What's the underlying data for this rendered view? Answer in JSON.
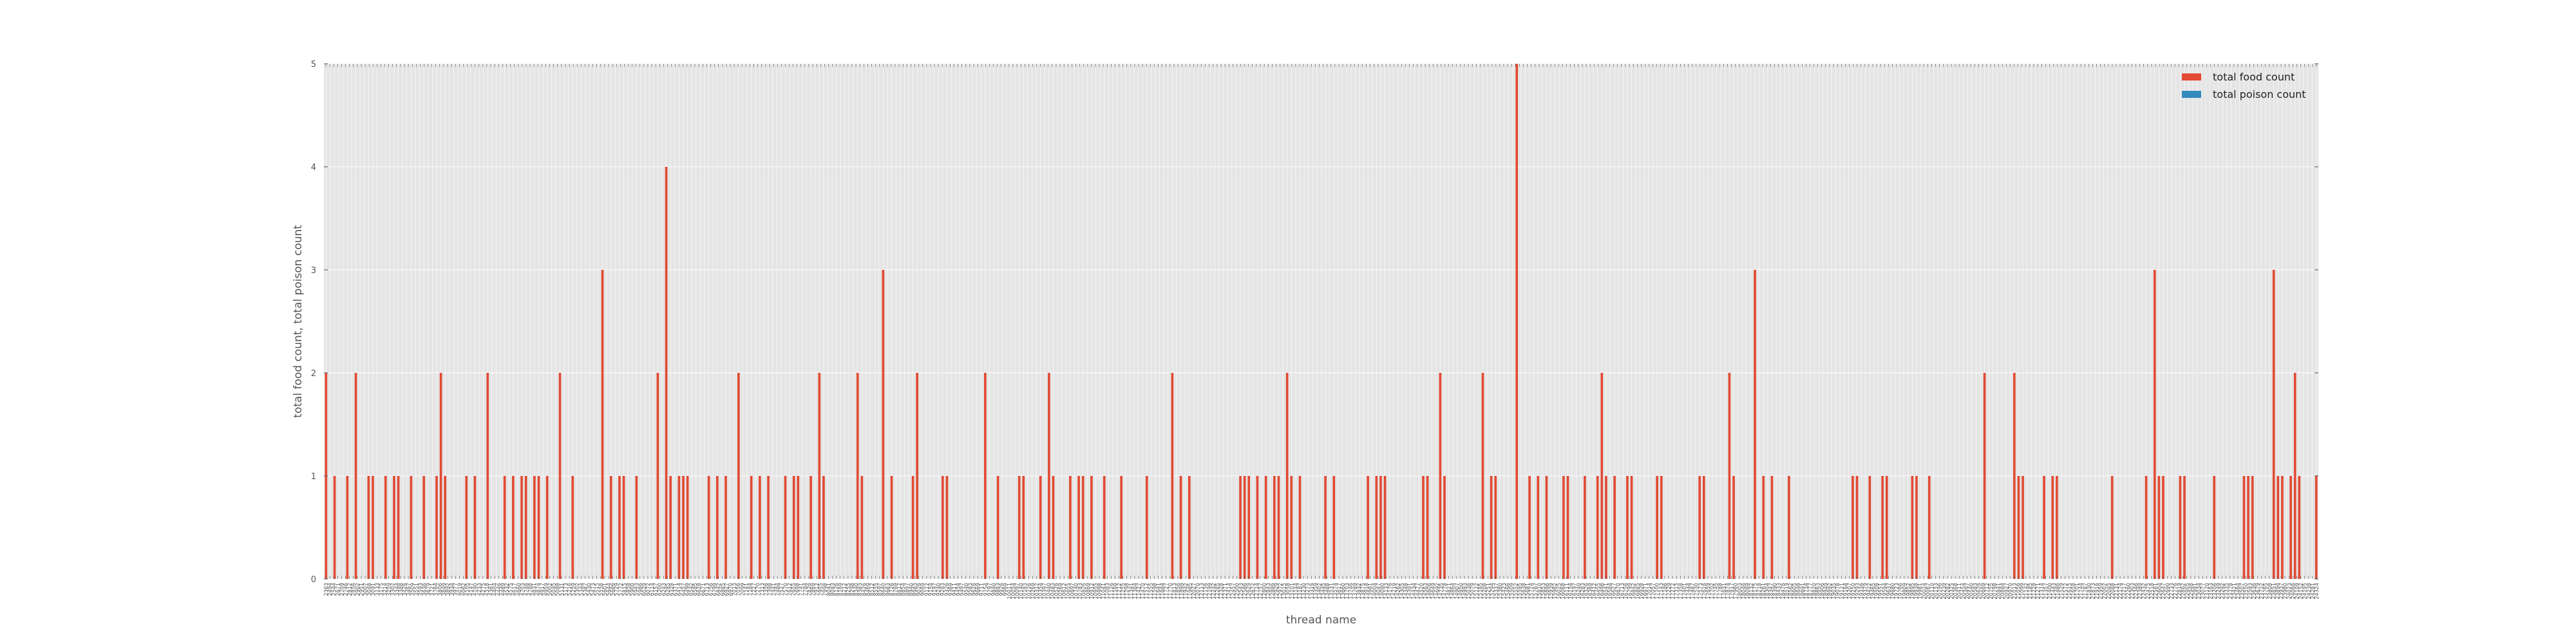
{
  "chart_data": {
    "type": "bar",
    "title": "",
    "xlabel": "thread name",
    "ylabel": "total food count, total poison count",
    "ylim": [
      0,
      5
    ],
    "yticks": [
      "0",
      "1",
      "2",
      "3",
      "4",
      "5"
    ],
    "grid": true,
    "legend_position": "top-right",
    "series": [
      {
        "name": "total food count",
        "color": "#e24a33",
        "values": [
          2,
          0,
          1,
          0,
          0,
          1,
          0,
          2,
          0,
          0,
          1,
          1,
          0,
          0,
          1,
          0,
          1,
          1,
          0,
          0,
          1,
          0,
          0,
          1,
          0,
          0,
          1,
          2,
          1,
          0,
          0,
          0,
          0,
          1,
          0,
          1,
          0,
          0,
          2,
          0,
          0,
          0,
          1,
          0,
          1,
          0,
          1,
          1,
          0,
          1,
          1,
          0,
          1,
          0,
          0,
          2,
          0,
          0,
          1,
          0,
          0,
          0,
          0,
          0,
          0,
          3,
          0,
          1,
          0,
          1,
          1,
          0,
          0,
          1,
          0,
          0,
          0,
          0,
          2,
          0,
          4,
          1,
          0,
          1,
          1,
          1,
          0,
          0,
          0,
          0,
          1,
          0,
          1,
          0,
          1,
          0,
          0,
          2,
          0,
          0,
          1,
          0,
          1,
          0,
          1,
          0,
          0,
          0,
          1,
          0,
          1,
          1,
          0,
          0,
          1,
          0,
          2,
          1,
          0,
          0,
          0,
          0,
          0,
          0,
          0,
          2,
          1,
          0,
          0,
          0,
          0,
          3,
          0,
          1,
          0,
          0,
          0,
          0,
          1,
          2,
          0,
          0,
          0,
          0,
          0,
          1,
          1,
          0,
          0,
          0,
          0,
          0,
          0,
          0,
          0,
          2,
          0,
          0,
          1,
          0,
          0,
          0,
          0,
          1,
          1,
          0,
          0,
          0,
          1,
          0,
          2,
          1,
          0,
          0,
          0,
          1,
          0,
          1,
          1,
          0,
          1,
          0,
          0,
          1,
          0,
          0,
          0,
          1,
          0,
          0,
          0,
          0,
          0,
          1,
          0,
          0,
          0,
          0,
          0,
          2,
          0,
          1,
          0,
          1,
          0,
          0,
          0,
          0,
          0,
          0,
          0,
          0,
          0,
          0,
          0,
          1,
          1,
          1,
          0,
          1,
          0,
          1,
          0,
          1,
          1,
          0,
          2,
          1,
          0,
          1,
          0,
          0,
          0,
          0,
          0,
          1,
          0,
          1,
          0,
          0,
          0,
          0,
          0,
          0,
          0,
          1,
          0,
          1,
          1,
          1,
          0,
          0,
          0,
          0,
          0,
          0,
          0,
          0,
          1,
          1,
          0,
          0,
          2,
          1,
          0,
          0,
          0,
          0,
          0,
          0,
          0,
          0,
          2,
          0,
          1,
          1,
          0,
          0,
          0,
          0,
          5,
          0,
          0,
          1,
          0,
          1,
          0,
          1,
          0,
          0,
          0,
          1,
          1,
          0,
          0,
          0,
          1,
          0,
          0,
          1,
          2,
          1,
          0,
          1,
          0,
          0,
          1,
          1,
          0,
          0,
          0,
          0,
          0,
          1,
          1,
          0,
          0,
          0,
          0,
          0,
          0,
          0,
          0,
          1,
          1,
          0,
          0,
          0,
          0,
          0,
          2,
          1,
          0,
          0,
          0,
          0,
          3,
          0,
          1,
          0,
          1,
          0,
          0,
          0,
          1,
          0,
          0,
          0,
          0,
          0,
          0,
          0,
          0,
          0,
          0,
          0,
          0,
          0,
          0,
          1,
          1,
          0,
          0,
          1,
          0,
          0,
          1,
          1,
          0,
          0,
          0,
          0,
          0,
          1,
          1,
          0,
          0,
          1,
          0,
          0,
          0,
          0,
          0,
          0,
          0,
          0,
          0,
          0,
          0,
          0,
          2,
          0,
          0,
          0,
          0,
          0,
          0,
          2,
          1,
          1,
          0,
          0,
          0,
          0,
          1,
          0,
          1,
          1,
          0,
          0,
          0,
          0,
          0,
          0,
          0,
          0,
          0,
          0,
          0,
          0,
          1,
          0,
          0,
          0,
          0,
          0,
          0,
          0,
          1,
          0,
          3,
          1,
          1,
          0,
          0,
          0,
          1,
          1,
          0,
          0,
          0,
          0,
          0,
          0,
          1,
          0,
          0,
          0,
          0,
          0,
          0,
          1,
          1,
          1,
          0,
          0,
          0,
          0,
          3,
          1,
          1,
          0,
          1,
          2,
          1,
          0,
          0,
          0,
          1
        ]
      },
      {
        "name": "total poison count",
        "color": "#348abd",
        "values": []
      }
    ]
  },
  "x_tick_labels": [
    "2363",
    "2494",
    "2544",
    "2671",
    "2709",
    "2746",
    "2812",
    "2856",
    "2902",
    "2951",
    "3007",
    "3048",
    "3091",
    "3133",
    "3175",
    "3214",
    "3259",
    "3302",
    "3344",
    "3388",
    "3426",
    "3467",
    "3509",
    "3551",
    "3593",
    "3636",
    "3679",
    "3721",
    "3764",
    "3806",
    "3849",
    "3892",
    "3934",
    "3977",
    "4019",
    "4062",
    "4105",
    "4147",
    "4190",
    "4233",
    "4275",
    "4318",
    "4361",
    "4404",
    "4446",
    "4489",
    "4532",
    "4575",
    "4617",
    "4660",
    "4703",
    "4746",
    "4788",
    "4831",
    "4874",
    "4917",
    "4959",
    "5002",
    "5045",
    "5088",
    "5131",
    "5173",
    "5216",
    "5259",
    "5302",
    "5344",
    "5387",
    "5430",
    "5473",
    "5515",
    "5558",
    "5601",
    "5644",
    "5686",
    "5729",
    "5772",
    "5815",
    "5858",
    "5900",
    "5943",
    "5986",
    "6029",
    "6072",
    "6114",
    "6157",
    "6200",
    "6243",
    "6285",
    "6328",
    "6371",
    "6414",
    "6457",
    "6499",
    "6542",
    "6585",
    "6628",
    "6671",
    "6713",
    "6756",
    "6799",
    "6842",
    "6885",
    "6927",
    "6970",
    "7013",
    "7056",
    "7099",
    "7141",
    "7184",
    "7227",
    "7270",
    "7313",
    "7356",
    "7398",
    "7441",
    "7484",
    "7527",
    "7570",
    "7612",
    "7655",
    "7698",
    "7741",
    "7784",
    "7826",
    "7869",
    "7912",
    "7955",
    "7998",
    "8041",
    "8083",
    "8126",
    "8169",
    "8212",
    "8255",
    "8298",
    "8340",
    "8383",
    "8426",
    "8469",
    "8512",
    "8555",
    "8597",
    "8640",
    "8683",
    "8726",
    "8769",
    "8812",
    "8854",
    "8897",
    "8940",
    "8983",
    "9026",
    "9069",
    "9112",
    "9154",
    "9197",
    "9240",
    "9283",
    "9326",
    "9369",
    "9411",
    "9454",
    "9497",
    "9540",
    "9583",
    "9626",
    "9669",
    "9711",
    "9754",
    "9797",
    "9840",
    "9883",
    "9926",
    "9969",
    "10011",
    "10054",
    "10097",
    "10140",
    "10183",
    "10226",
    "10269",
    "10312",
    "10354",
    "10397",
    "10440",
    "10483",
    "10526",
    "10569",
    "10612",
    "10655",
    "10697",
    "10740",
    "10783",
    "10826",
    "10869",
    "10912",
    "10955",
    "10998",
    "11041",
    "11083",
    "11126",
    "11169",
    "11212",
    "11255",
    "11298",
    "11341",
    "11384",
    "11427",
    "11470",
    "11512",
    "11555",
    "11598",
    "11641",
    "11684",
    "11727",
    "11770",
    "11813",
    "11856",
    "11899",
    "11942",
    "11985",
    "12027",
    "12070",
    "12113",
    "12156",
    "12199",
    "12242",
    "12285",
    "12328",
    "12371",
    "12414",
    "12457",
    "12500",
    "12543",
    "12586",
    "12629",
    "12672",
    "12714",
    "12757",
    "12800",
    "12843",
    "12886",
    "12929",
    "12972",
    "13015",
    "13058",
    "13101",
    "13144",
    "13187",
    "13230",
    "13273",
    "13316",
    "13359",
    "13402",
    "13445",
    "13488",
    "13531",
    "13574",
    "13617",
    "13660",
    "13703",
    "13746",
    "13789",
    "13832",
    "13875",
    "13918",
    "13961",
    "14004",
    "14047",
    "14090",
    "14133",
    "14176",
    "14219",
    "14262",
    "14305",
    "14348",
    "14391",
    "14434",
    "14477",
    "14520",
    "14563",
    "14606",
    "14649",
    "14692",
    "14735",
    "14778",
    "14821",
    "14864",
    "14907",
    "14950",
    "14993",
    "15036",
    "15079",
    "15122",
    "15165",
    "15208",
    "15251",
    "15294",
    "15337",
    "15380",
    "15423",
    "15466",
    "15509",
    "15552",
    "15595",
    "15638",
    "15681",
    "15724",
    "15767",
    "15810",
    "15853",
    "15896",
    "15939",
    "15982",
    "16025",
    "16068",
    "16111",
    "16154",
    "16197",
    "16240",
    "16283",
    "16326",
    "16369",
    "16412",
    "16455",
    "16498",
    "16541",
    "16584",
    "16627",
    "16670",
    "16713",
    "16756",
    "16799",
    "16842",
    "16885",
    "16928",
    "16971",
    "17014",
    "17057",
    "17100",
    "17143",
    "17186",
    "17229",
    "17272",
    "17315",
    "17358",
    "17401",
    "17444",
    "17487",
    "17530",
    "17573",
    "17616",
    "17659",
    "17702",
    "17745",
    "17788",
    "17831",
    "17874",
    "17917",
    "17960",
    "18003",
    "18046",
    "18089",
    "18132",
    "18175",
    "18218",
    "18261",
    "18304",
    "18347",
    "18390",
    "18433",
    "18476",
    "18519",
    "18562",
    "18605",
    "18648",
    "18691",
    "18734",
    "18777",
    "18820",
    "18863",
    "18906",
    "18949",
    "18992",
    "19035",
    "19078",
    "19121",
    "19164",
    "19207",
    "19250",
    "19293",
    "19336",
    "19379",
    "19422",
    "19465",
    "19508",
    "19551",
    "19594",
    "19637",
    "19680",
    "19723",
    "19766",
    "19809",
    "19852",
    "19895",
    "19938",
    "19981",
    "20024",
    "20067",
    "20110",
    "20153",
    "20196",
    "20239",
    "20282",
    "20325",
    "20368",
    "20411",
    "20454",
    "20497",
    "20540",
    "20583",
    "20626",
    "20669",
    "20712",
    "20755",
    "20798",
    "20841",
    "20884",
    "20927",
    "20970",
    "21013",
    "21056",
    "21099",
    "21142",
    "21185",
    "21228",
    "21271",
    "21314",
    "21357",
    "21400",
    "21443",
    "21486",
    "21529",
    "21572",
    "21615",
    "21658",
    "21701",
    "21744",
    "21787",
    "21830",
    "21873",
    "21916",
    "21959",
    "22002",
    "22045",
    "22088",
    "22131",
    "22174",
    "22217",
    "22260",
    "22303",
    "22346",
    "22389",
    "22432",
    "22475",
    "22518",
    "22561",
    "22604",
    "22647",
    "22690",
    "22733",
    "22776",
    "22819",
    "22862",
    "22905",
    "22948",
    "22991",
    "23034",
    "23077",
    "23120",
    "23163",
    "23206",
    "23249",
    "23292",
    "23335",
    "23378",
    "23421",
    "23464",
    "23507",
    "23550",
    "23593",
    "23636",
    "23679",
    "23722",
    "23765",
    "23808",
    "23851",
    "23894",
    "23937",
    "23980",
    "24023",
    "24066",
    "24109",
    "24152",
    "24195",
    "24238",
    "24281",
    "24324"
  ]
}
